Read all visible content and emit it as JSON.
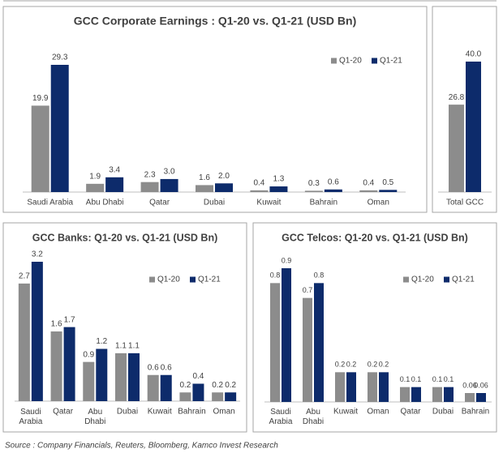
{
  "chart_data": [
    {
      "type": "bar",
      "title": "GCC Corporate Earnings : Q1-20 vs. Q1-21 (USD Bn)",
      "categories": [
        "Saudi Arabia",
        "Abu Dhabi",
        "Qatar",
        "Dubai",
        "Kuwait",
        "Bahrain",
        "Oman"
      ],
      "series": [
        {
          "name": "Q1-20",
          "color": "#8c8c8c",
          "values": [
            19.9,
            1.9,
            2.3,
            1.6,
            0.4,
            0.3,
            0.4
          ],
          "value_labels": [
            "19.9",
            "1.9",
            "2.3",
            "1.6",
            "0.4",
            "0.3",
            "0.4"
          ]
        },
        {
          "name": "Q1-21",
          "color": "#0d2b6b",
          "values": [
            29.3,
            3.4,
            3.0,
            2.0,
            1.3,
            0.6,
            0.5
          ],
          "value_labels": [
            "29.3",
            "3.4",
            "3.0",
            "2.0",
            "1.3",
            "0.6",
            "0.5"
          ]
        }
      ],
      "legend": "upper right"
    },
    {
      "type": "bar",
      "categories": [
        "Total GCC"
      ],
      "series": [
        {
          "color": "#8c8c8c",
          "values": [
            26.8
          ],
          "value_labels": [
            "26.8"
          ]
        },
        {
          "color": "#0d2b6b",
          "values": [
            40.0
          ],
          "value_labels": [
            "40.0"
          ]
        }
      ]
    },
    {
      "type": "bar",
      "title": "GCC Banks: Q1-20 vs. Q1-21 (USD Bn)",
      "categories": [
        "Saudi Arabia",
        "Qatar",
        "Abu Dhabi",
        "Dubai",
        "Kuwait",
        "Bahrain",
        "Oman"
      ],
      "series": [
        {
          "name": "Q1-20",
          "color": "#8c8c8c",
          "values": [
            2.7,
            1.6,
            0.9,
            1.1,
            0.6,
            0.2,
            0.2
          ]
        },
        {
          "name": "Q1-21",
          "color": "#0d2b6b",
          "values": [
            3.2,
            1.7,
            1.2,
            1.1,
            0.6,
            0.4,
            0.2
          ]
        }
      ],
      "legend": "upper right"
    },
    {
      "type": "bar",
      "title": "GCC Telcos: Q1-20 vs. Q1-21 (USD Bn)",
      "categories": [
        "Saudi Arabia",
        "Abu Dhabi",
        "Kuwait",
        "Oman",
        "Qatar",
        "Dubai",
        "Bahrain"
      ],
      "series": [
        {
          "name": "Q1-20",
          "color": "#8c8c8c",
          "values": [
            0.8,
            0.7,
            0.2,
            0.2,
            0.1,
            0.1,
            0.06
          ]
        },
        {
          "name": "Q1-21",
          "color": "#0d2b6b",
          "values": [
            0.9,
            0.8,
            0.2,
            0.2,
            0.1,
            0.1,
            0.06
          ]
        }
      ],
      "legend": "upper right"
    }
  ],
  "source": "Source : Company Financials, Reuters, Bloomberg, Kamco Invest Research"
}
